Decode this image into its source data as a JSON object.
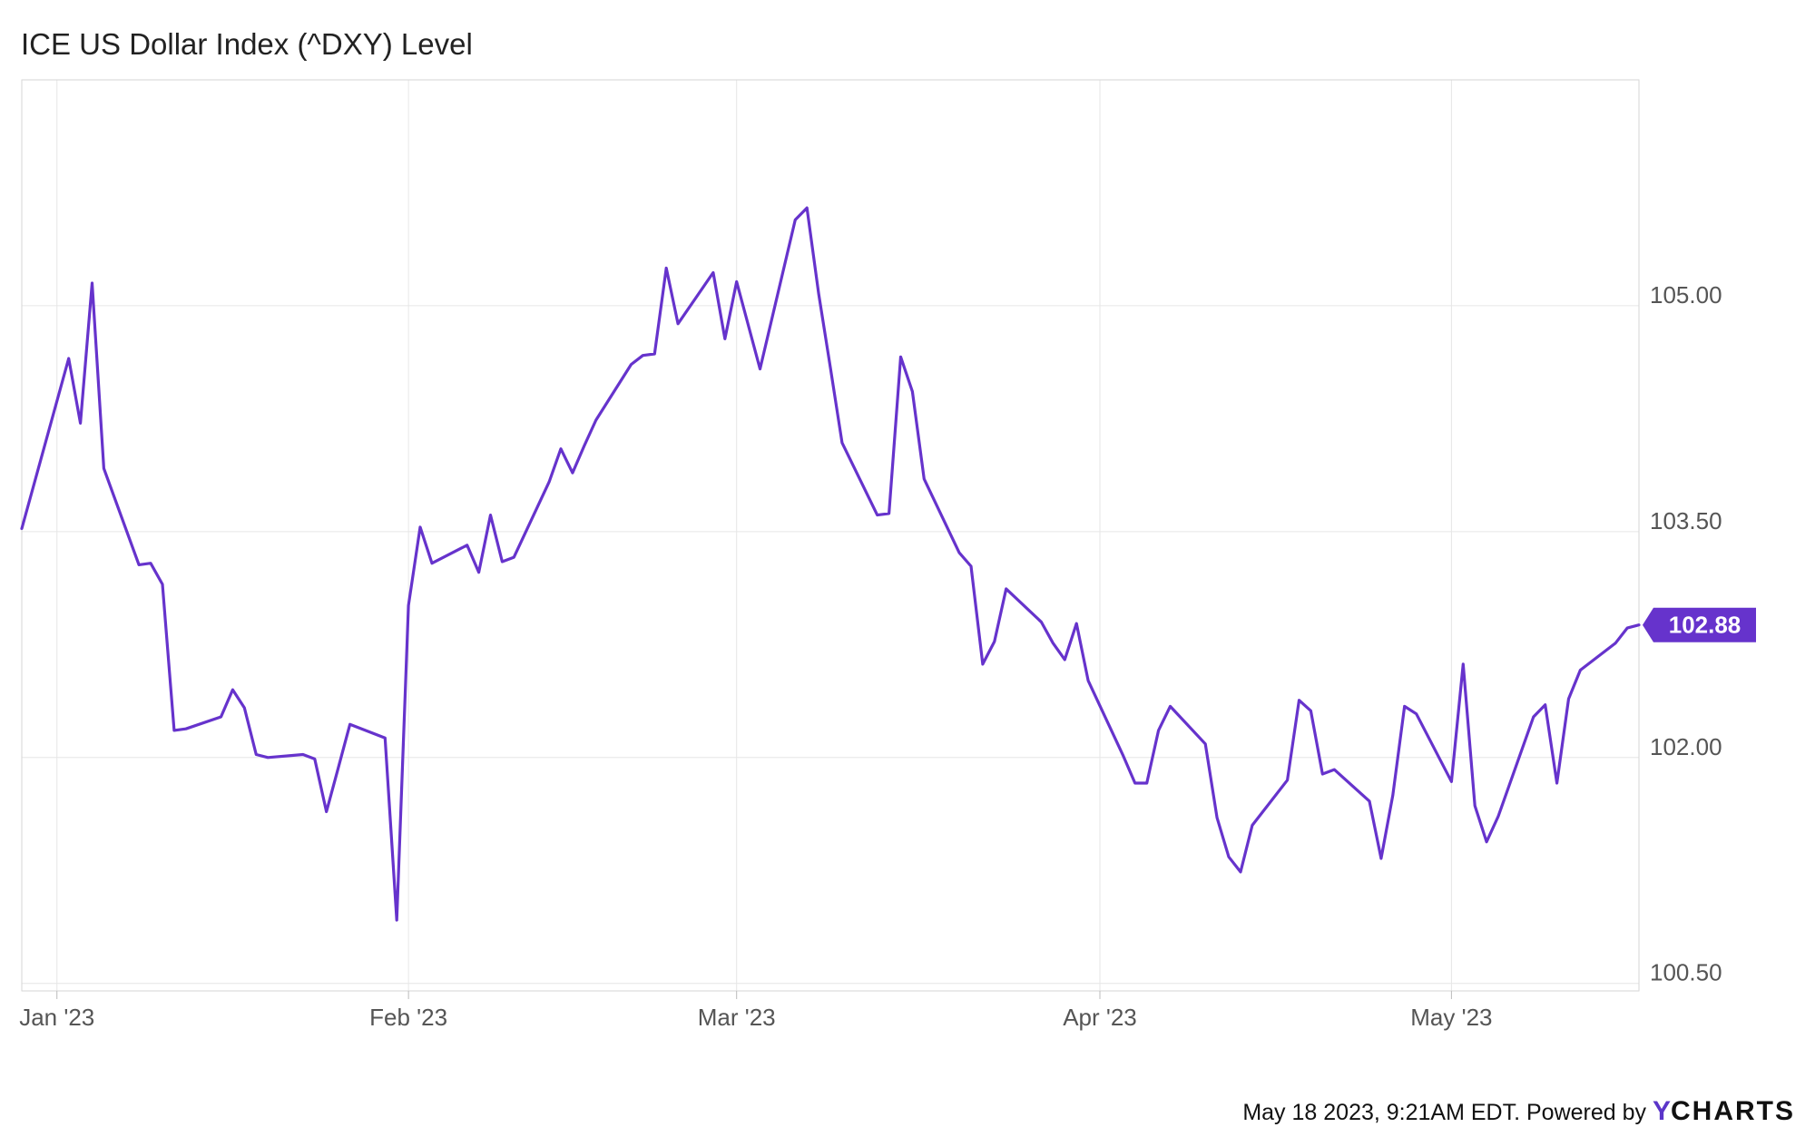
{
  "title": "ICE US Dollar Index (^DXY) Level",
  "footer": {
    "timestamp": "May 18 2023, 9:21AM EDT.",
    "powered_by": "Powered by",
    "brand_y": "Y",
    "brand_rest": "CHARTS"
  },
  "colors": {
    "line": "#6633cc",
    "label_bg": "#6633cc",
    "grid": "#e6e6e6",
    "frame": "#d6d6d6",
    "text": "#555555"
  },
  "chart_data": {
    "type": "line",
    "title": "ICE US Dollar Index (^DXY) Level",
    "x_tick_labels": [
      "Jan '23",
      "Feb '23",
      "Mar '23",
      "Apr '23",
      "May '23"
    ],
    "y_tick_labels": [
      "100.50",
      "102.00",
      "103.50",
      "105.00"
    ],
    "ylim": [
      100.45,
      106.5
    ],
    "grid": true,
    "last_value_label": "102.88",
    "series": [
      {
        "x": [
          "2022-12-30",
          "2023-01-03",
          "2023-01-04",
          "2023-01-05",
          "2023-01-06",
          "2023-01-09",
          "2023-01-10",
          "2023-01-11",
          "2023-01-12",
          "2023-01-13",
          "2023-01-16",
          "2023-01-17",
          "2023-01-18",
          "2023-01-19",
          "2023-01-20",
          "2023-01-23",
          "2023-01-24",
          "2023-01-25",
          "2023-01-26",
          "2023-01-27",
          "2023-01-30",
          "2023-01-31",
          "2023-02-01",
          "2023-02-02",
          "2023-02-03",
          "2023-02-06",
          "2023-02-07",
          "2023-02-08",
          "2023-02-09",
          "2023-02-10",
          "2023-02-13",
          "2023-02-14",
          "2023-02-15",
          "2023-02-16",
          "2023-02-17",
          "2023-02-20",
          "2023-02-21",
          "2023-02-22",
          "2023-02-23",
          "2023-02-24",
          "2023-02-27",
          "2023-02-28",
          "2023-03-01",
          "2023-03-02",
          "2023-03-03",
          "2023-03-06",
          "2023-03-07",
          "2023-03-08",
          "2023-03-09",
          "2023-03-10",
          "2023-03-13",
          "2023-03-14",
          "2023-03-15",
          "2023-03-16",
          "2023-03-17",
          "2023-03-20",
          "2023-03-21",
          "2023-03-22",
          "2023-03-23",
          "2023-03-24",
          "2023-03-27",
          "2023-03-28",
          "2023-03-29",
          "2023-03-30",
          "2023-03-31",
          "2023-04-03",
          "2023-04-04",
          "2023-04-05",
          "2023-04-06",
          "2023-04-07",
          "2023-04-10",
          "2023-04-11",
          "2023-04-12",
          "2023-04-13",
          "2023-04-14",
          "2023-04-17",
          "2023-04-18",
          "2023-04-19",
          "2023-04-20",
          "2023-04-21",
          "2023-04-24",
          "2023-04-25",
          "2023-04-26",
          "2023-04-27",
          "2023-04-28",
          "2023-05-01",
          "2023-05-02",
          "2023-05-03",
          "2023-05-04",
          "2023-05-05",
          "2023-05-08",
          "2023-05-09",
          "2023-05-10",
          "2023-05-11",
          "2023-05-12",
          "2023-05-15",
          "2023-05-16",
          "2023-05-17"
        ],
        "values": [
          103.52,
          104.65,
          104.22,
          105.15,
          103.92,
          103.28,
          103.29,
          103.15,
          102.18,
          102.19,
          102.27,
          102.45,
          102.33,
          102.02,
          102.0,
          102.02,
          101.99,
          101.64,
          101.93,
          102.22,
          102.13,
          100.92,
          103.01,
          103.53,
          103.29,
          103.41,
          103.23,
          103.61,
          103.3,
          103.33,
          103.83,
          104.05,
          103.89,
          104.07,
          104.24,
          104.61,
          104.67,
          104.68,
          105.25,
          104.88,
          105.22,
          104.78,
          105.16,
          104.87,
          104.58,
          105.57,
          105.65,
          105.08,
          104.59,
          104.09,
          103.61,
          103.62,
          104.66,
          104.43,
          103.85,
          103.36,
          103.27,
          102.62,
          102.77,
          103.12,
          102.9,
          102.76,
          102.65,
          102.89,
          102.51,
          102.01,
          101.83,
          101.83,
          102.18,
          102.34,
          102.09,
          101.6,
          101.34,
          101.24,
          101.55,
          101.85,
          102.38,
          102.31,
          101.89,
          101.92,
          101.71,
          101.33,
          101.75,
          102.34,
          102.29,
          101.84,
          102.62,
          101.68,
          101.44,
          101.61,
          102.27,
          102.35,
          101.83,
          102.39,
          102.58,
          102.76,
          102.86,
          102.88
        ]
      }
    ]
  }
}
